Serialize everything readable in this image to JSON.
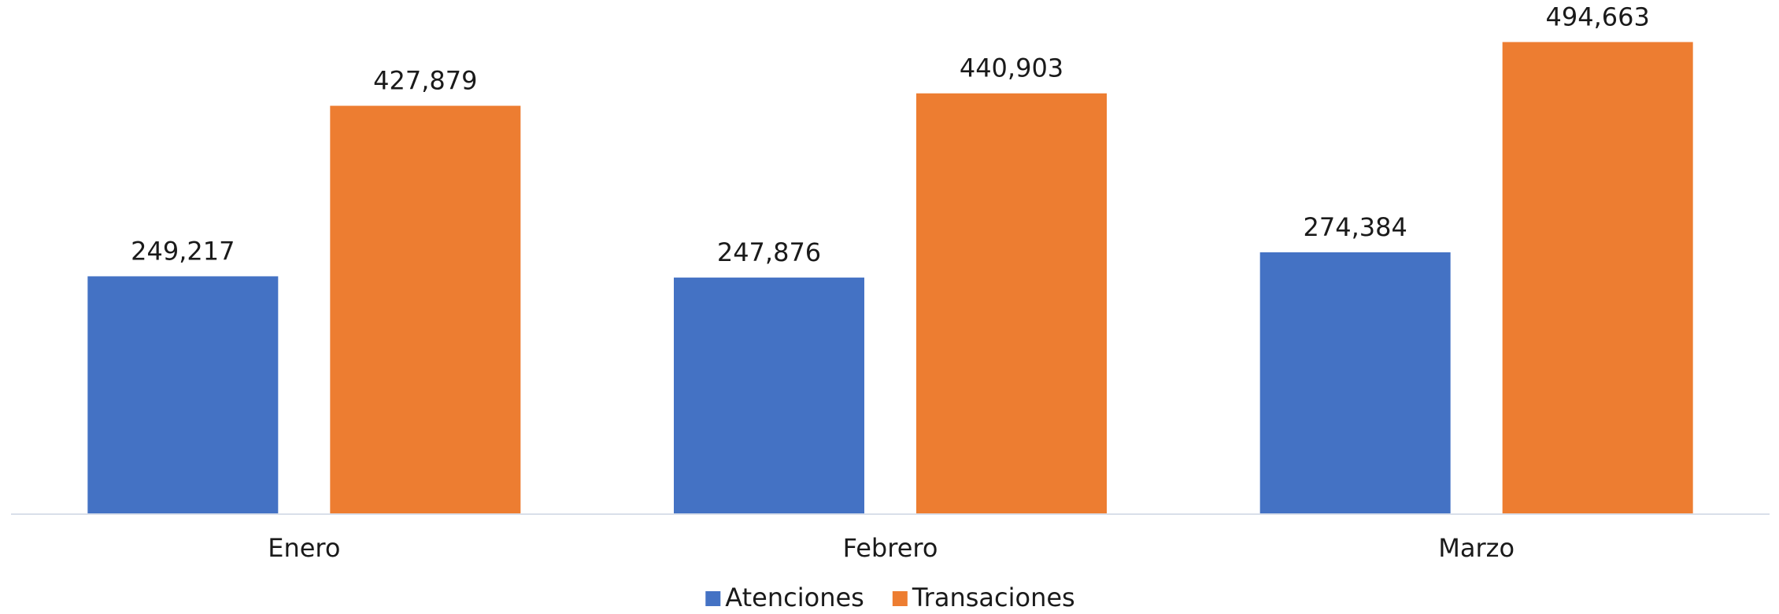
{
  "chart_data": {
    "type": "bar",
    "categories": [
      "Enero",
      "Febrero",
      "Marzo"
    ],
    "series": [
      {
        "name": "Atenciones",
        "color": "#4472c4",
        "values": [
          249217,
          247876,
          274384
        ],
        "value_labels": [
          "249,217",
          "247,876",
          "274,384"
        ]
      },
      {
        "name": "Transaciones",
        "color": "#ed7d31",
        "values": [
          427879,
          440903,
          494663
        ],
        "value_labels": [
          "427,879",
          "440,903",
          "494,663"
        ]
      }
    ],
    "ylim": [
      0,
      500000
    ],
    "legend": "bottom"
  }
}
